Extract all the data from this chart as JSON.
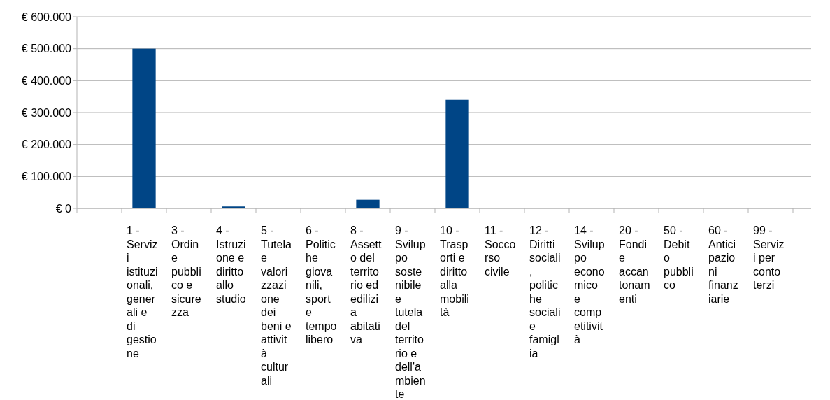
{
  "chart_data": {
    "type": "bar",
    "categories": [
      null,
      "1 - Servizi istituzionali, generali e di gestione",
      "3 - Ordine pubblico e sicurezza",
      "4 - Istruzione e diritto allo studio",
      "5 - Tutela e valorizzazione dei beni e attività culturali",
      "6 - Politiche giovanili, sport e tempo libero",
      "8 - Assetto del territorio ed edilizia abitativa",
      "9 - Sviluppo sostenibile e tutela del territorio e dell'ambiente",
      "10 - Trasporti e diritto alla mobilità",
      "11 - Soccorso civile",
      "12 - Diritti sociali, politiche sociali e famiglia",
      "14 - Sviluppo economico e competitività",
      "20 - Fondi e accantonamenti",
      "50 - Debito pubblico",
      "60 - Anticipazioni finanziarie",
      "99 - Servizi per conto terzi"
    ],
    "values": [
      null,
      500000,
      0,
      6000,
      0,
      0,
      27000,
      2000,
      340000,
      0,
      0,
      0,
      0,
      0,
      0,
      0
    ],
    "color": "#004586",
    "ylim": [
      0,
      600000
    ],
    "yticks": [
      {
        "value": 0,
        "label": "€ 0"
      },
      {
        "value": 100000,
        "label": "€ 100.000"
      },
      {
        "value": 200000,
        "label": "€ 200.000"
      },
      {
        "value": 300000,
        "label": "€ 300.000"
      },
      {
        "value": 400000,
        "label": "€ 400.000"
      },
      {
        "value": 500000,
        "label": "€ 500.000"
      },
      {
        "value": 600000,
        "label": "€ 600.000"
      }
    ],
    "grid": "y"
  }
}
